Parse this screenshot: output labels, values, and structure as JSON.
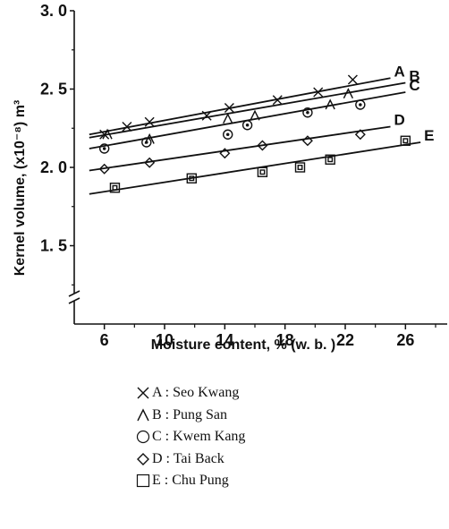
{
  "chart_data": {
    "type": "scatter",
    "title": "",
    "xlabel": "Moisture content, % (w. b. )",
    "ylabel": "Kernel volume, (x10⁻⁸) m³",
    "xlim": [
      4,
      28
    ],
    "ylim": [
      1.0,
      3.0
    ],
    "xticks": [
      "6",
      "10",
      "14",
      "18",
      "22",
      "26"
    ],
    "yticks": [
      "1. 5",
      "2. 0",
      "2. 5",
      "3. 0"
    ],
    "axis_break": true,
    "grid": false,
    "series": [
      {
        "label": "A",
        "marker": "x",
        "points": [
          [
            6,
            2.21
          ],
          [
            7.5,
            2.26
          ],
          [
            9,
            2.29
          ],
          [
            12.8,
            2.33
          ],
          [
            14.3,
            2.38
          ],
          [
            17.5,
            2.43
          ],
          [
            20.2,
            2.48
          ],
          [
            22.5,
            2.56
          ]
        ],
        "fit": [
          [
            5,
            2.21
          ],
          [
            25,
            2.57
          ]
        ]
      },
      {
        "label": "B",
        "marker": "wedge",
        "points": [
          [
            6.2,
            2.21
          ],
          [
            9,
            2.18
          ],
          [
            14.2,
            2.31
          ],
          [
            16,
            2.33
          ],
          [
            21,
            2.4
          ],
          [
            22.2,
            2.47
          ]
        ],
        "fit": [
          [
            5,
            2.19
          ],
          [
            26,
            2.54
          ]
        ]
      },
      {
        "label": "C",
        "marker": "circle",
        "points": [
          [
            6,
            2.12
          ],
          [
            8.8,
            2.16
          ],
          [
            14.2,
            2.21
          ],
          [
            15.5,
            2.27
          ],
          [
            19.5,
            2.35
          ],
          [
            23,
            2.4
          ]
        ],
        "fit": [
          [
            5,
            2.12
          ],
          [
            26,
            2.48
          ]
        ]
      },
      {
        "label": "D",
        "marker": "diamond",
        "points": [
          [
            6,
            1.99
          ],
          [
            9,
            2.03
          ],
          [
            14,
            2.09
          ],
          [
            16.5,
            2.14
          ],
          [
            19.5,
            2.17
          ],
          [
            23,
            2.21
          ]
        ],
        "fit": [
          [
            5,
            1.98
          ],
          [
            25,
            2.26
          ]
        ]
      },
      {
        "label": "E",
        "marker": "square",
        "points": [
          [
            6.7,
            1.87
          ],
          [
            11.8,
            1.93
          ],
          [
            16.5,
            1.97
          ],
          [
            19,
            2.0
          ],
          [
            21,
            2.05
          ],
          [
            26,
            2.17
          ]
        ],
        "fit": [
          [
            5,
            1.83
          ],
          [
            27,
            2.16
          ]
        ]
      }
    ],
    "legend": [
      {
        "marker": "x",
        "text": "A : Seo Kwang"
      },
      {
        "marker": "wedge",
        "text": "B : Pung San"
      },
      {
        "marker": "circle",
        "text": "C : Kwem Kang"
      },
      {
        "marker": "diamond",
        "text": "D : Tai Back"
      },
      {
        "marker": "square",
        "text": "E : Chu Pung"
      }
    ]
  }
}
